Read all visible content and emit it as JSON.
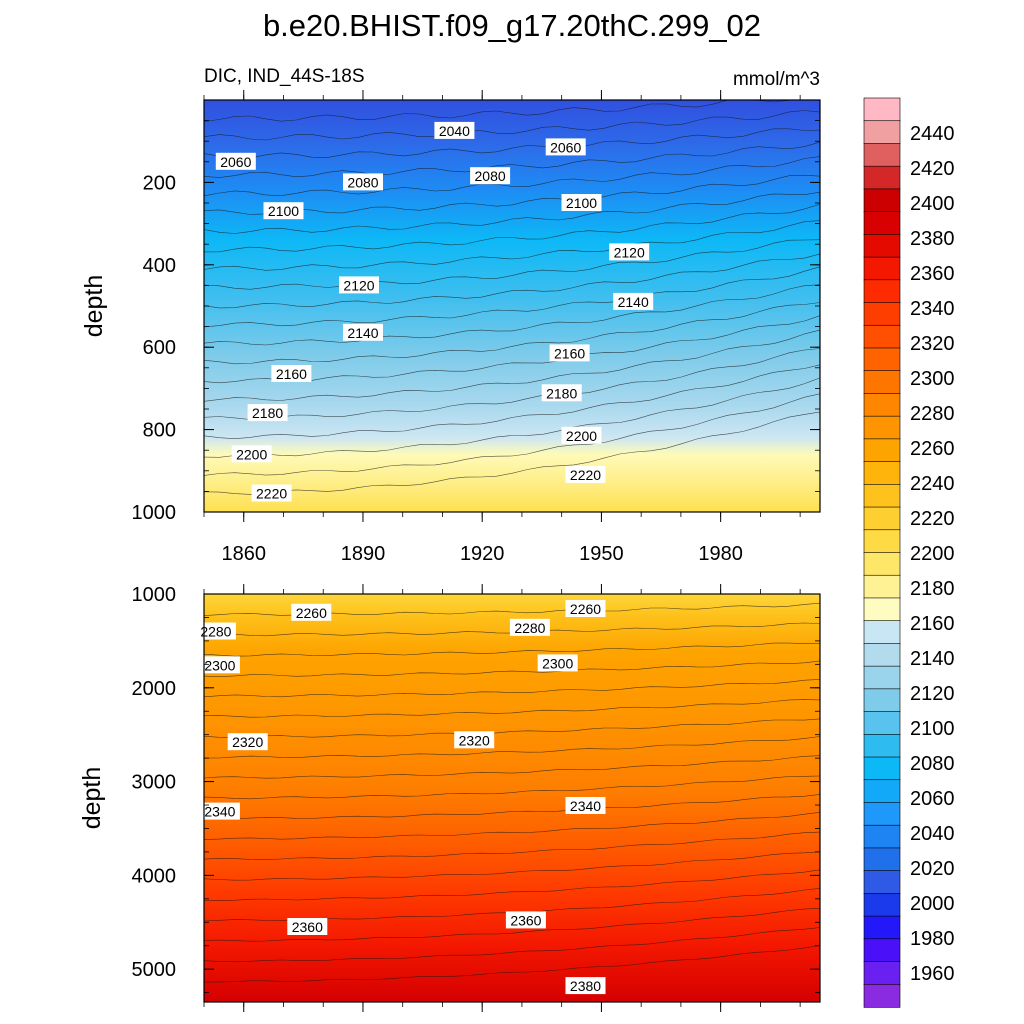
{
  "title": "b.e20.BHIST.f09_g17.20thC.299_02",
  "chart_data": {
    "type": "contour",
    "title": "b.e20.BHIST.f09_g17.20thC.299_02",
    "variable": "DIC, IND_44S-18S",
    "units": "mmol/m^3",
    "x_ticks": [
      1860,
      1890,
      1920,
      1950,
      1980
    ],
    "xlim": [
      1850,
      2005
    ],
    "panels": [
      {
        "name": "upper",
        "ylabel": "depth",
        "ylim": [
          0,
          1000
        ],
        "y_ticks": [
          200,
          400,
          600,
          800,
          1000
        ],
        "contour_labels": [
          {
            "value": "2040",
            "x": 1913,
            "y": 75
          },
          {
            "value": "2060",
            "x": 1858,
            "y": 150
          },
          {
            "value": "2060",
            "x": 1941,
            "y": 115
          },
          {
            "value": "2080",
            "x": 1890,
            "y": 200
          },
          {
            "value": "2080",
            "x": 1922,
            "y": 185
          },
          {
            "value": "2100",
            "x": 1870,
            "y": 270
          },
          {
            "value": "2100",
            "x": 1945,
            "y": 250
          },
          {
            "value": "2120",
            "x": 1889,
            "y": 450
          },
          {
            "value": "2120",
            "x": 1957,
            "y": 370
          },
          {
            "value": "2140",
            "x": 1890,
            "y": 565
          },
          {
            "value": "2140",
            "x": 1958,
            "y": 490
          },
          {
            "value": "2160",
            "x": 1872,
            "y": 665
          },
          {
            "value": "2160",
            "x": 1942,
            "y": 615
          },
          {
            "value": "2180",
            "x": 1866,
            "y": 760
          },
          {
            "value": "2180",
            "x": 1940,
            "y": 712
          },
          {
            "value": "2200",
            "x": 1862,
            "y": 860
          },
          {
            "value": "2200",
            "x": 1945,
            "y": 815
          },
          {
            "value": "2220",
            "x": 1867,
            "y": 955
          },
          {
            "value": "2220",
            "x": 1946,
            "y": 910
          }
        ]
      },
      {
        "name": "lower",
        "ylabel": "depth",
        "ylim": [
          1000,
          5350
        ],
        "y_ticks": [
          1000,
          2000,
          3000,
          4000,
          5000
        ],
        "contour_labels": [
          {
            "value": "2260",
            "x": 1877,
            "y": 1200
          },
          {
            "value": "2260",
            "x": 1946,
            "y": 1160
          },
          {
            "value": "2280",
            "x": 1853,
            "y": 1400
          },
          {
            "value": "2280",
            "x": 1932,
            "y": 1360
          },
          {
            "value": "2300",
            "x": 1854,
            "y": 1760
          },
          {
            "value": "2300",
            "x": 1939,
            "y": 1740
          },
          {
            "value": "2320",
            "x": 1861,
            "y": 2580
          },
          {
            "value": "2320",
            "x": 1918,
            "y": 2560
          },
          {
            "value": "2340",
            "x": 1854,
            "y": 3320
          },
          {
            "value": "2340",
            "x": 1946,
            "y": 3260
          },
          {
            "value": "2360",
            "x": 1876,
            "y": 4550
          },
          {
            "value": "2360",
            "x": 1931,
            "y": 4480
          },
          {
            "value": "2380",
            "x": 1946,
            "y": 5180
          }
        ]
      }
    ],
    "colorbar": {
      "levels": [
        1960,
        1980,
        2000,
        2020,
        2040,
        2060,
        2080,
        2100,
        2120,
        2140,
        2160,
        2180,
        2200,
        2220,
        2240,
        2260,
        2280,
        2300,
        2320,
        2340,
        2360,
        2380,
        2400,
        2420,
        2440
      ],
      "labels": [
        "2440",
        "2420",
        "2400",
        "2380",
        "2360",
        "2340",
        "2320",
        "2300",
        "2280",
        "2260",
        "2240",
        "2220",
        "2200",
        "2180",
        "2160",
        "2140",
        "2120",
        "2100",
        "2080",
        "2060",
        "2040",
        "2020",
        "2000",
        "1980",
        "1960"
      ],
      "colors": [
        "#8A2BE2",
        "#6A20F0",
        "#4A10F8",
        "#2218FA",
        "#1A3AEC",
        "#2E5AE6",
        "#2070EC",
        "#1E84F4",
        "#1E98FA",
        "#12AAF8",
        "#0DB8F6",
        "#2EBCF0",
        "#58C3EE",
        "#7ECBEA",
        "#9AD3EC",
        "#B2DCEE",
        "#C9E6F4",
        "#FEFCC0",
        "#FEF294",
        "#FEE668",
        "#FEDA44",
        "#FECF30",
        "#FEC21C",
        "#FEB40A",
        "#FEA400",
        "#FE9500",
        "#FE8600",
        "#FE7500",
        "#FE6300",
        "#FE5000",
        "#FE3E00",
        "#FE2A00",
        "#F41800",
        "#E40A00",
        "#D80000",
        "#CC0000",
        "#D42828",
        "#E06060",
        "#F0A0A0",
        "#FFB8C4"
      ]
    }
  }
}
